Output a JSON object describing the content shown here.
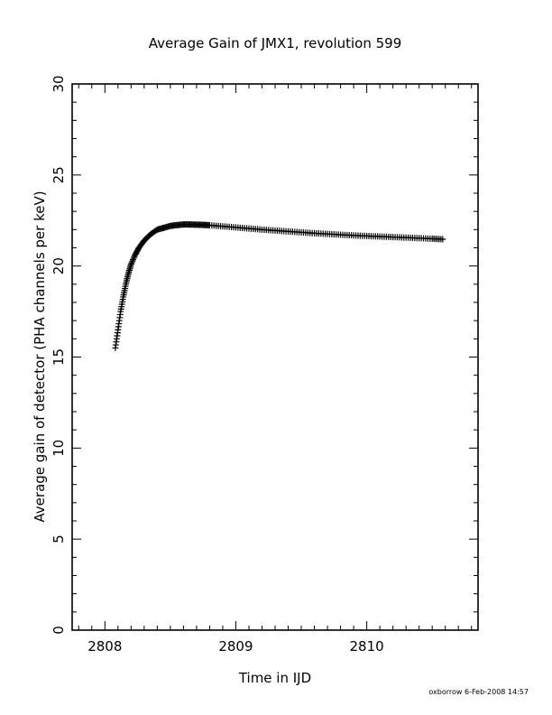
{
  "chart_data": {
    "type": "scatter",
    "title": "Average Gain of JMX1, revolution 599",
    "xlabel": "Time in IJD",
    "ylabel": "Average gain of detector (PHA channels per keV)",
    "xlim": [
      2807.75,
      2810.85
    ],
    "ylim": [
      0,
      30
    ],
    "x_major_ticks": [
      2808,
      2809,
      2810
    ],
    "x_minor_step": 0.1,
    "y_major_ticks": [
      0,
      5,
      10,
      15,
      20,
      25,
      30
    ],
    "y_minor_step": 1,
    "marker": "plus",
    "grid": false,
    "series": [
      {
        "x": [
          2808.08,
          2808.1,
          2808.12,
          2808.14,
          2808.16,
          2808.18,
          2808.2,
          2808.23,
          2808.26,
          2808.3,
          2808.35,
          2808.4,
          2808.45,
          2808.5,
          2808.55,
          2808.6,
          2808.65,
          2808.7,
          2808.75,
          2808.8,
          2808.9,
          2809.0,
          2809.1,
          2809.2,
          2809.3,
          2809.4,
          2809.5,
          2809.6,
          2809.7,
          2809.8,
          2809.9,
          2810.0,
          2810.1,
          2810.2,
          2810.3,
          2810.4,
          2810.5,
          2810.58
        ],
        "y": [
          15.5,
          16.5,
          17.5,
          18.3,
          19.0,
          19.6,
          20.1,
          20.6,
          21.0,
          21.4,
          21.75,
          22.0,
          22.1,
          22.2,
          22.25,
          22.28,
          22.28,
          22.27,
          22.26,
          22.24,
          22.18,
          22.12,
          22.06,
          22.0,
          21.95,
          21.9,
          21.85,
          21.8,
          21.76,
          21.72,
          21.68,
          21.65,
          21.62,
          21.59,
          21.56,
          21.53,
          21.5,
          21.47
        ]
      }
    ]
  },
  "footer": "oxborrow  6-Feb-2008 14:57"
}
